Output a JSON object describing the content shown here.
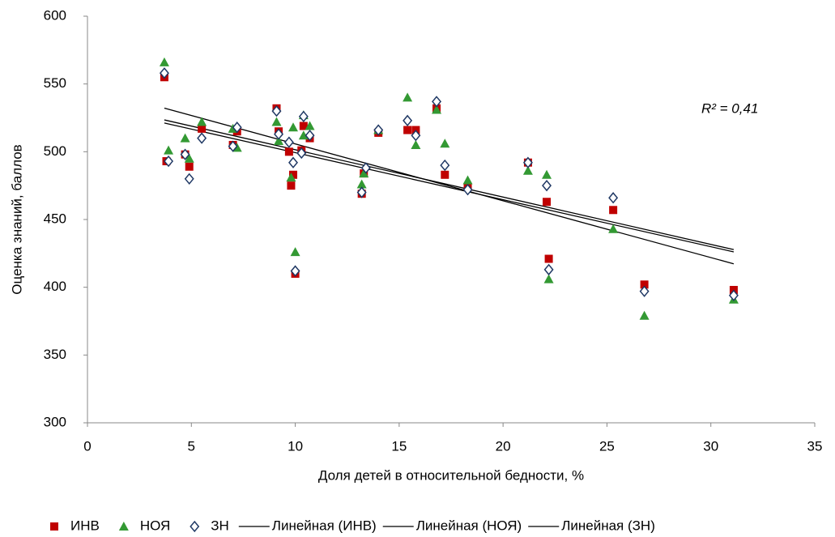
{
  "chart_data": {
    "type": "scatter",
    "xlabel": "Доля детей в относительной бедности, %",
    "ylabel": "Оценка знаний, баллов",
    "annotation": "R² = 0,41",
    "xlim": [
      0,
      35
    ],
    "xticks": [
      0,
      5,
      10,
      15,
      20,
      25,
      30,
      35
    ],
    "ylim": [
      300,
      600
    ],
    "yticks": [
      300,
      350,
      400,
      450,
      500,
      550,
      600
    ],
    "series": [
      {
        "name": "ИНВ",
        "color": "#c00000",
        "marker": "square",
        "trendline": {
          "name": "Линейная (ИНВ)",
          "color": "#000000"
        },
        "x": [
          3.7,
          3.8,
          4.7,
          4.9,
          5.5,
          7.0,
          7.2,
          9.1,
          9.2,
          9.7,
          9.8,
          9.9,
          10.0,
          10.3,
          10.4,
          10.7,
          13.2,
          13.3,
          14.0,
          15.4,
          15.8,
          16.8,
          17.2,
          18.3,
          21.2,
          22.1,
          22.2,
          25.3,
          26.8,
          31.1
        ],
        "values": [
          555,
          493,
          498,
          489,
          517,
          505,
          515,
          532,
          515,
          500,
          475,
          483,
          410,
          501,
          519,
          510,
          469,
          484,
          514,
          516,
          516,
          532,
          483,
          474,
          492,
          463,
          421,
          457,
          402,
          398
        ]
      },
      {
        "name": "НОЯ",
        "color": "#339933",
        "marker": "triangle",
        "trendline": {
          "name": "Линейная (НОЯ)",
          "color": "#000000"
        },
        "x": [
          3.7,
          3.9,
          4.7,
          4.9,
          5.5,
          7.0,
          7.2,
          9.1,
          9.2,
          9.8,
          9.9,
          10.0,
          10.4,
          10.4,
          10.7,
          13.2,
          13.3,
          14.0,
          15.4,
          15.8,
          16.8,
          17.2,
          18.3,
          21.2,
          22.1,
          22.2,
          25.3,
          26.8,
          31.1
        ],
        "values": [
          566,
          501,
          510,
          495,
          522,
          517,
          503,
          522,
          508,
          481,
          518,
          426,
          527,
          512,
          519,
          476,
          484,
          516,
          540,
          505,
          531,
          506,
          479,
          486,
          483,
          406,
          443,
          379,
          391
        ]
      },
      {
        "name": "ЗН",
        "color": "#1f3864",
        "marker": "diamond",
        "trendline": {
          "name": "Линейная (ЗН)",
          "color": "#000000"
        },
        "x": [
          3.7,
          3.9,
          4.7,
          4.9,
          5.5,
          7.0,
          7.2,
          9.1,
          9.2,
          9.7,
          9.9,
          10.0,
          10.3,
          10.4,
          10.7,
          13.2,
          13.4,
          14.0,
          15.4,
          15.8,
          16.8,
          17.2,
          18.3,
          21.2,
          22.1,
          22.2,
          25.3,
          26.8,
          31.1
        ],
        "values": [
          558,
          493,
          498,
          480,
          510,
          504,
          518,
          530,
          513,
          507,
          492,
          412,
          499,
          526,
          512,
          470,
          488,
          516,
          523,
          512,
          537,
          490,
          472,
          492,
          475,
          413,
          466,
          397,
          394
        ]
      }
    ]
  }
}
